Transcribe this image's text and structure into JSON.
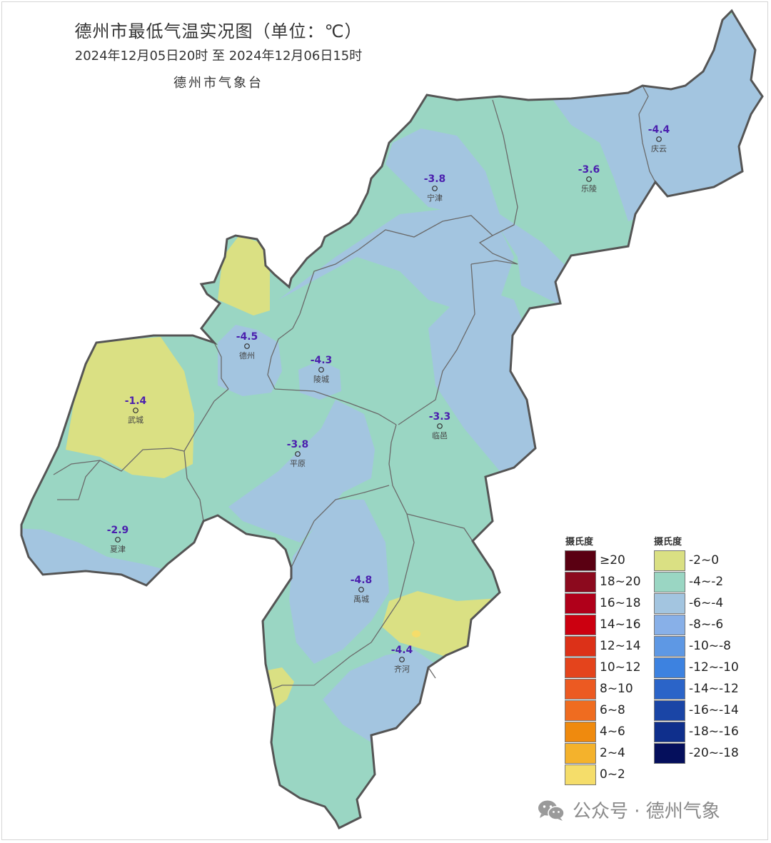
{
  "header": {
    "title": "德州市最低气温实况图（单位：℃）",
    "period": "2024年12月05日20时   至   2024年12月06日15时",
    "issuer": "德州市气象台"
  },
  "stations": [
    {
      "name": "庆云",
      "value": "-4.4"
    },
    {
      "name": "宁津",
      "value": "-3.8"
    },
    {
      "name": "乐陵",
      "value": "-3.6"
    },
    {
      "name": "德州",
      "value": "-4.5"
    },
    {
      "name": "陵城",
      "value": "-4.3"
    },
    {
      "name": "武城",
      "value": "-1.4"
    },
    {
      "name": "临邑",
      "value": "-3.3"
    },
    {
      "name": "平原",
      "value": "-3.8"
    },
    {
      "name": "夏津",
      "value": "-2.9"
    },
    {
      "name": "禹城",
      "value": "-4.8"
    },
    {
      "name": "齐河",
      "value": "-4.4"
    }
  ],
  "legend": {
    "heading": "摄氏度",
    "warm": [
      {
        "label": "≥20",
        "color": "#5a0012"
      },
      {
        "label": "18~20",
        "color": "#8c0a1e"
      },
      {
        "label": "16~18",
        "color": "#b0001a"
      },
      {
        "label": "14~16",
        "color": "#cc0010"
      },
      {
        "label": "12~14",
        "color": "#dc3118"
      },
      {
        "label": "10~12",
        "color": "#e4441c"
      },
      {
        "label": "8~10",
        "color": "#ec5a22"
      },
      {
        "label": "6~8",
        "color": "#ef6c20"
      },
      {
        "label": "4~6",
        "color": "#ef8a0e"
      },
      {
        "label": "2~4",
        "color": "#f4b22c"
      },
      {
        "label": "0~2",
        "color": "#f5dd6a"
      }
    ],
    "cold": [
      {
        "label": "-2~0",
        "color": "#dae083"
      },
      {
        "label": "-4~-2",
        "color": "#9ad6c3"
      },
      {
        "label": "-6~-4",
        "color": "#a3c5e0"
      },
      {
        "label": "-8~-6",
        "color": "#88b0e8"
      },
      {
        "label": "-10~-8",
        "color": "#5e98e4"
      },
      {
        "label": "-12~-10",
        "color": "#3d82e0"
      },
      {
        "label": "-14~-12",
        "color": "#2b64c8"
      },
      {
        "label": "-16~-14",
        "color": "#1a45a6"
      },
      {
        "label": "-18~-16",
        "color": "#0f2f8c"
      },
      {
        "label": "-20~-18",
        "color": "#050f5c"
      }
    ]
  },
  "watermark": {
    "text": "公众号 · 德州气象",
    "icon": "wechat-icon"
  },
  "colors": {
    "value_text": "#4b1fae",
    "name_text": "#444444",
    "boundary": "#555555"
  }
}
